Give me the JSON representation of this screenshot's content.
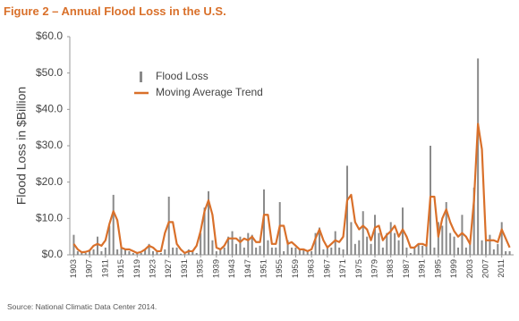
{
  "chart_data": {
    "type": "bar-line",
    "title": "Figure 2 – Annual Flood Loss in the U.S.",
    "y_label": "Flood Loss in $Billion",
    "source": "Source: National Climatic Data Center 2014.",
    "x": [
      1903,
      1904,
      1905,
      1906,
      1907,
      1908,
      1909,
      1910,
      1911,
      1912,
      1913,
      1914,
      1915,
      1916,
      1917,
      1918,
      1919,
      1920,
      1921,
      1922,
      1923,
      1924,
      1925,
      1926,
      1927,
      1928,
      1929,
      1930,
      1931,
      1932,
      1933,
      1934,
      1935,
      1936,
      1937,
      1938,
      1939,
      1940,
      1941,
      1942,
      1943,
      1944,
      1945,
      1946,
      1947,
      1948,
      1949,
      1950,
      1951,
      1952,
      1953,
      1954,
      1955,
      1956,
      1957,
      1958,
      1959,
      1960,
      1961,
      1962,
      1963,
      1964,
      1965,
      1966,
      1967,
      1968,
      1969,
      1970,
      1971,
      1972,
      1973,
      1974,
      1975,
      1976,
      1977,
      1978,
      1979,
      1980,
      1981,
      1982,
      1983,
      1984,
      1985,
      1986,
      1987,
      1988,
      1989,
      1990,
      1991,
      1992,
      1993,
      1994,
      1995,
      1996,
      1997,
      1998,
      1999,
      2000,
      2001,
      2002,
      2003,
      2004,
      2005,
      2006,
      2007,
      2008,
      2009,
      2010,
      2011,
      2012,
      2013
    ],
    "xlim": [
      1902,
      2014
    ],
    "xticks": [
      1903,
      1907,
      1911,
      1915,
      1919,
      1923,
      1927,
      1931,
      1935,
      1939,
      1943,
      1947,
      1951,
      1955,
      1959,
      1963,
      1967,
      1971,
      1975,
      1979,
      1983,
      1987,
      1991,
      1995,
      1999,
      2003,
      2007,
      2011
    ],
    "ylim": [
      0,
      60
    ],
    "yticks": [
      {
        "value": 0,
        "label": "$0.0"
      },
      {
        "value": 10,
        "label": "$10.0"
      },
      {
        "value": 20,
        "label": "$20.0"
      },
      {
        "value": 30,
        "label": "$30.0"
      },
      {
        "value": 40,
        "label": "$40.0"
      },
      {
        "value": 50,
        "label": "$50.0"
      },
      {
        "value": 60,
        "label": "$60.0"
      }
    ],
    "legend": "upper-left",
    "series": [
      {
        "name": "Flood Loss",
        "type": "bar",
        "color": "#8a8a8a",
        "values": [
          5.5,
          1,
          0.5,
          0.5,
          1,
          1.5,
          5,
          1,
          2,
          8,
          16.5,
          1.5,
          2,
          1.5,
          1,
          0.5,
          0.5,
          0.5,
          1.5,
          3,
          1,
          1,
          0.5,
          1.5,
          16,
          2,
          2,
          0.3,
          0.3,
          1.5,
          1,
          0.5,
          6,
          13,
          17.5,
          4,
          1,
          1.5,
          2,
          5,
          6.5,
          3,
          5,
          2,
          6,
          5.5,
          2,
          2.5,
          18,
          4,
          2,
          2,
          14.5,
          1,
          4,
          2,
          2,
          1.5,
          1.5,
          1,
          1,
          6,
          7.5,
          1.5,
          2.5,
          2,
          6.5,
          2,
          1.5,
          24.5,
          9,
          3,
          4,
          12,
          5,
          3,
          11,
          6,
          2,
          6,
          9,
          6,
          4,
          13,
          2,
          0.5,
          2,
          3,
          2.5,
          3,
          30,
          2,
          9,
          8,
          14.5,
          6,
          5,
          2,
          11,
          2,
          3,
          18.5,
          54,
          4,
          4,
          5.5,
          1.5,
          3,
          9,
          1,
          1
        ]
      },
      {
        "name": "Moving Average Trend",
        "type": "line",
        "color": "#d9702a",
        "values": [
          3,
          1.5,
          0.7,
          0.8,
          1.2,
          2.5,
          3,
          2.5,
          4,
          8.5,
          12,
          9.5,
          2,
          1.5,
          1.5,
          1,
          0.5,
          0.8,
          1.5,
          2.5,
          2,
          1,
          1,
          6,
          9,
          9,
          3,
          1.5,
          0.5,
          1,
          1,
          2.5,
          6.5,
          12,
          15,
          11,
          2,
          1.5,
          2.5,
          4.5,
          4.5,
          4.5,
          3.5,
          4.5,
          4,
          5,
          3.5,
          3.5,
          11,
          11,
          3,
          3,
          8,
          8,
          3,
          3.5,
          2.5,
          1.5,
          1.5,
          1,
          1.5,
          4.5,
          7,
          4,
          2,
          3,
          4,
          3.5,
          5,
          15,
          16.5,
          9,
          7,
          8,
          7,
          4,
          7.5,
          8,
          4,
          5.5,
          6.5,
          8,
          5,
          7,
          5,
          2,
          2,
          3,
          3,
          2.5,
          16,
          16,
          5,
          10,
          12.5,
          9,
          6.5,
          5,
          6,
          5,
          3,
          15,
          36,
          29,
          4,
          4,
          4,
          3.5,
          7,
          4.5,
          2
        ]
      }
    ]
  }
}
